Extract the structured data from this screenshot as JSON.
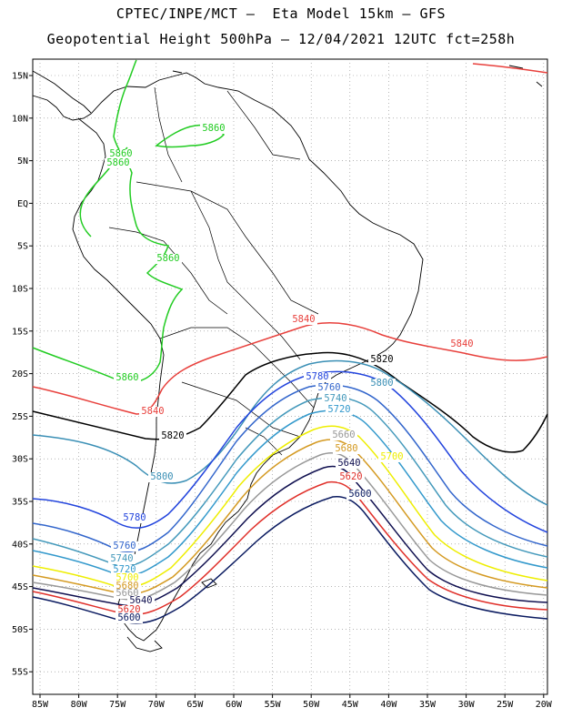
{
  "title_line1": "CPTEC/INPE/MCT –  Eta Model 15km – GFS",
  "title_line2": "Geopotential Height 500hPa – 12/04/2021 12UTC fct=258h",
  "lat_labels": [
    "15N",
    "10N",
    "5N",
    "EQ",
    "5S",
    "10S",
    "15S",
    "20S",
    "25S",
    "30S",
    "35S",
    "40S",
    "45S",
    "50S",
    "55S"
  ],
  "lon_labels": [
    "85W",
    "80W",
    "75W",
    "70W",
    "65W",
    "60W",
    "55W",
    "50W",
    "45W",
    "40W",
    "35W",
    "30W",
    "25W",
    "20W"
  ],
  "contour_colors": {
    "5860": "#22cc22",
    "5840": "#e8403c",
    "5820": "#000000",
    "5800": "#3a8fb5",
    "5780": "#2244dd",
    "5760": "#3366cc",
    "5740": "#4499bb",
    "5720": "#3399cc",
    "5700": "#eeee00",
    "5680": "#d49a22",
    "5660": "#999999",
    "5640": "#101050",
    "5620": "#e0302a",
    "5600": "#0a1a60"
  },
  "contour_labels": [
    {
      "text": "5860",
      "level": "5860"
    },
    {
      "text": "5860",
      "level": "5860"
    },
    {
      "text": "5860",
      "level": "5860"
    },
    {
      "text": "5860",
      "level": "5860"
    },
    {
      "text": "5860",
      "level": "5860"
    },
    {
      "text": "5840",
      "level": "5840"
    },
    {
      "text": "5840",
      "level": "5840"
    },
    {
      "text": "5840",
      "level": "5840"
    },
    {
      "text": "5820",
      "level": "5820"
    },
    {
      "text": "5820",
      "level": "5820"
    },
    {
      "text": "5800",
      "level": "5800"
    },
    {
      "text": "5800",
      "level": "5800"
    },
    {
      "text": "5780",
      "level": "5780"
    },
    {
      "text": "5780",
      "level": "5780"
    },
    {
      "text": "5760",
      "level": "5760"
    },
    {
      "text": "5760",
      "level": "5760"
    },
    {
      "text": "5740",
      "level": "5740"
    },
    {
      "text": "5740",
      "level": "5740"
    },
    {
      "text": "5720",
      "level": "5720"
    },
    {
      "text": "5720",
      "level": "5720"
    },
    {
      "text": "5700",
      "level": "5700"
    },
    {
      "text": "5700",
      "level": "5700"
    },
    {
      "text": "5680",
      "level": "5680"
    },
    {
      "text": "5680",
      "level": "5680"
    },
    {
      "text": "5660",
      "level": "5660"
    },
    {
      "text": "5660",
      "level": "5660"
    },
    {
      "text": "5640",
      "level": "5640"
    },
    {
      "text": "5640",
      "level": "5640"
    },
    {
      "text": "5620",
      "level": "5620"
    },
    {
      "text": "5620",
      "level": "5620"
    },
    {
      "text": "5600",
      "level": "5600"
    },
    {
      "text": "5600",
      "level": "5600"
    }
  ]
}
